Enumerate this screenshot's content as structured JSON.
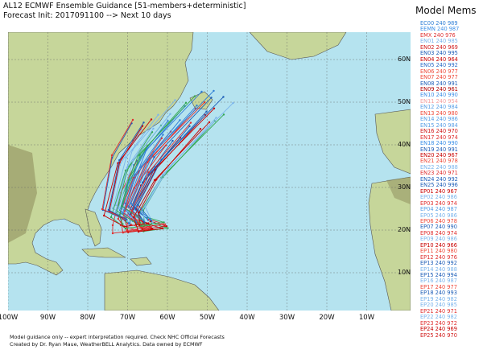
{
  "header": {
    "line1": "AL12 ECMWF Ensemble Guidance [51-members+deterministic]",
    "line2": "Forecast Init: 2017091100 --> Next 10 days"
  },
  "legend": {
    "title": "Model Mems",
    "items": [
      {
        "label": "EC00 240 989",
        "color": "#2f7fd6"
      },
      {
        "label": "EEMN 240 987",
        "color": "#3b8fe8"
      },
      {
        "label": "EMX 240 976",
        "color": "#e03030"
      },
      {
        "label": "EN01 240 985",
        "color": "#7ab4ec"
      },
      {
        "label": "EN02 240 969",
        "color": "#d11a1a"
      },
      {
        "label": "EN03 240 995",
        "color": "#1f5fb8"
      },
      {
        "label": "EN04 240 964",
        "color": "#c80000"
      },
      {
        "label": "EN05 240 992",
        "color": "#2a6cc8"
      },
      {
        "label": "EN06 240 977",
        "color": "#ef4a3a"
      },
      {
        "label": "EN07 240 977",
        "color": "#ef4a3a"
      },
      {
        "label": "EN08 240 991",
        "color": "#1f5fb8"
      },
      {
        "label": "EN09 240 961",
        "color": "#b00000"
      },
      {
        "label": "EN10 240 990",
        "color": "#3b8fe8"
      },
      {
        "label": "EN11 240 954",
        "color": "#f5a0a0"
      },
      {
        "label": "EN12 240 984",
        "color": "#5aa0e6"
      },
      {
        "label": "EN13 240 980",
        "color": "#ef4a3a"
      },
      {
        "label": "EN14 240 986",
        "color": "#5aa0e6"
      },
      {
        "label": "EN15 240 984",
        "color": "#5aa0e6"
      },
      {
        "label": "EN16 240 970",
        "color": "#d11a1a"
      },
      {
        "label": "EN17 240 974",
        "color": "#e03030"
      },
      {
        "label": "EN18 240 990",
        "color": "#3b8fe8"
      },
      {
        "label": "EN19 240 991",
        "color": "#1f5fb8"
      },
      {
        "label": "EN20 240 967",
        "color": "#c80000"
      },
      {
        "label": "EN21 240 978",
        "color": "#ef4a3a"
      },
      {
        "label": "EN22 240 988",
        "color": "#7ab4ec"
      },
      {
        "label": "EN23 240 971",
        "color": "#e03030"
      },
      {
        "label": "EN24 240 992",
        "color": "#1f5fb8"
      },
      {
        "label": "EN25 240 996",
        "color": "#1f5fb8"
      },
      {
        "label": "EP01 240 967",
        "color": "#c80000"
      },
      {
        "label": "EP02 240 986",
        "color": "#7ab4ec"
      },
      {
        "label": "EP03 240 974",
        "color": "#e03030"
      },
      {
        "label": "EP04 240 987",
        "color": "#5aa0e6"
      },
      {
        "label": "EP05 240 986",
        "color": "#7ab4ec"
      },
      {
        "label": "EP06 240 978",
        "color": "#ef4a3a"
      },
      {
        "label": "EP07 240 990",
        "color": "#1f5fb8"
      },
      {
        "label": "EP08 240 974",
        "color": "#e03030"
      },
      {
        "label": "EP09 240 986",
        "color": "#7ab4ec"
      },
      {
        "label": "EP10 240 966",
        "color": "#c80000"
      },
      {
        "label": "EP11 240 980",
        "color": "#ef4a3a"
      },
      {
        "label": "EP12 240 976",
        "color": "#e03030"
      },
      {
        "label": "EP13 240 992",
        "color": "#1f5fb8"
      },
      {
        "label": "EP14 240 988",
        "color": "#7ab4ec"
      },
      {
        "label": "EP15 240 994",
        "color": "#1f5fb8"
      },
      {
        "label": "EP16 240 987",
        "color": "#7ab4ec"
      },
      {
        "label": "EP17 240 977",
        "color": "#ef4a3a"
      },
      {
        "label": "EP18 240 993",
        "color": "#1f5fb8"
      },
      {
        "label": "EP19 240 982",
        "color": "#7ab4ec"
      },
      {
        "label": "EP20 240 985",
        "color": "#7ab4ec"
      },
      {
        "label": "EP21 240 971",
        "color": "#e03030"
      },
      {
        "label": "EP22 240 982",
        "color": "#7ab4ec"
      },
      {
        "label": "EP23 240 972",
        "color": "#e03030"
      },
      {
        "label": "EP24 240 969",
        "color": "#c80000"
      },
      {
        "label": "EP25 240 970",
        "color": "#d11a1a"
      }
    ]
  },
  "map": {
    "lon_ticks": [
      "100W",
      "90W",
      "80W",
      "70W",
      "60W",
      "50W",
      "40W",
      "30W",
      "20W",
      "10W"
    ],
    "lat_ticks": [
      "60N",
      "50N",
      "40N",
      "30N",
      "20N",
      "10N"
    ],
    "colors": {
      "ocean": "#b5e3ef",
      "land": "#c6d69a",
      "highland": "#8c8a5a",
      "track_red": "#e03030",
      "track_blue": "#2f7fd6",
      "track_green": "#33a852"
    }
  },
  "footer": {
    "line1": "Model guidance only -- expert interpretation required.  Check NHC Official Forecasts",
    "line2": "Created by Dr. Ryan Maue, WeatherBELL Analytics.  Data owned by ECMWF"
  }
}
